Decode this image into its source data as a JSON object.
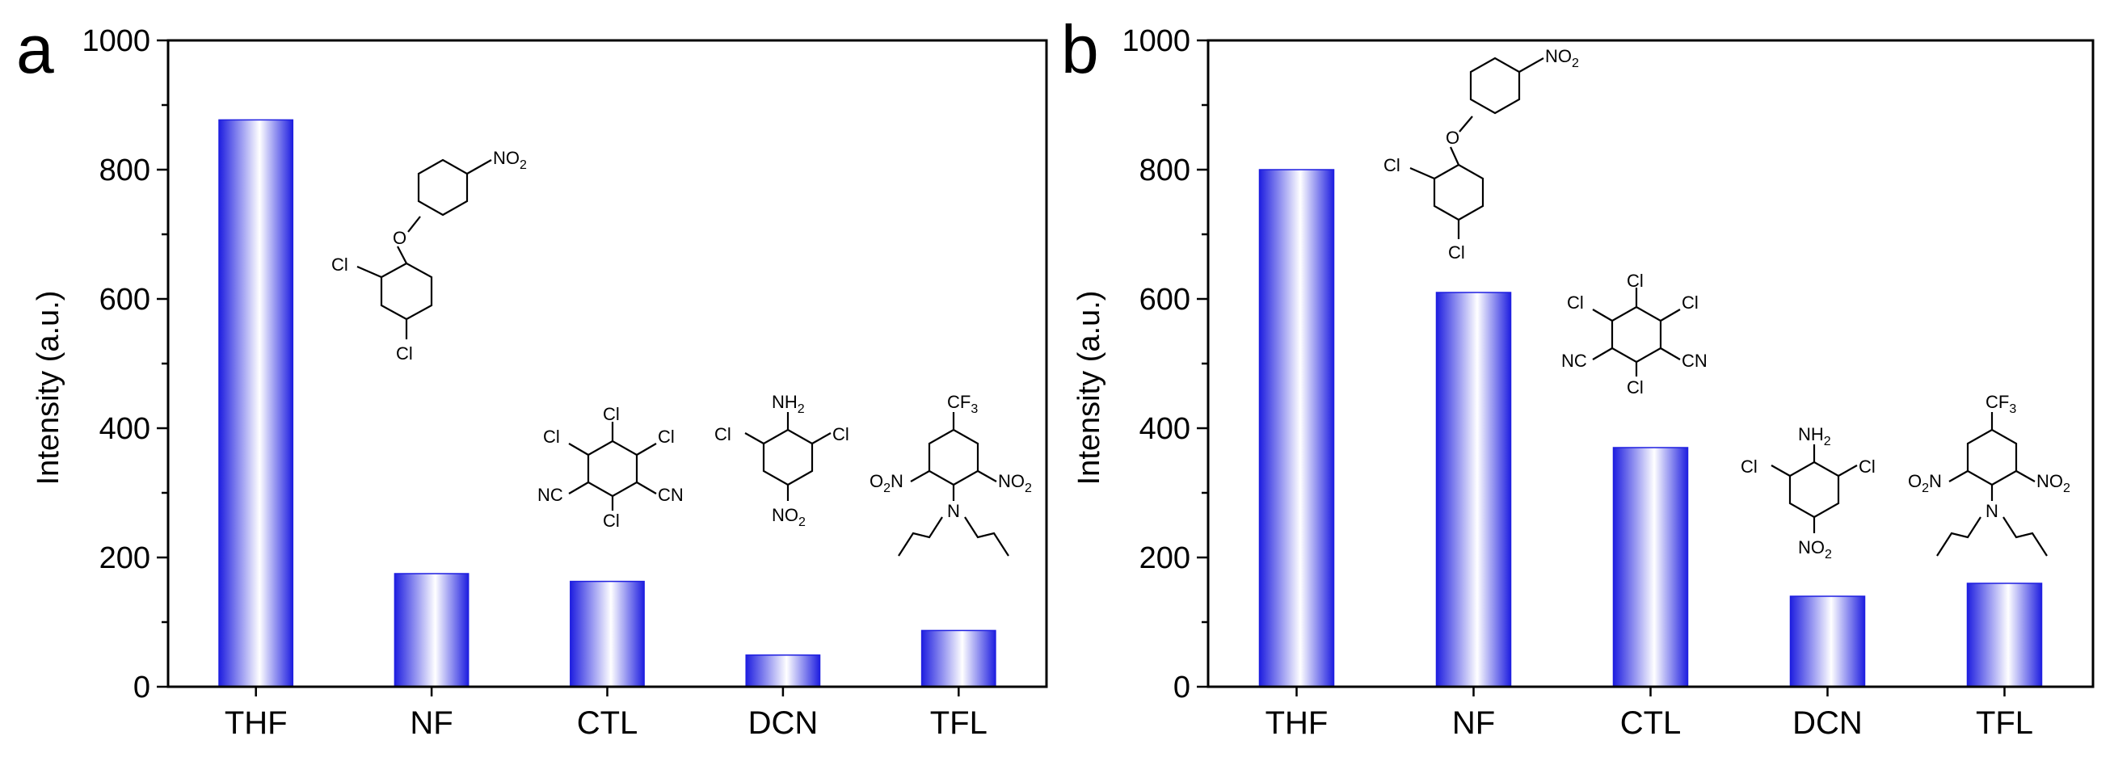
{
  "colors": {
    "bar_dark": "#1f1fe0",
    "bar_light": "#ffffff",
    "axis": "#000000"
  },
  "chart_data": [
    {
      "type": "bar",
      "panel_label": "a",
      "ylabel": "Intensity (a.u.)",
      "xlabel": "",
      "ylim": [
        0,
        1000
      ],
      "yticks": [
        "0",
        "200",
        "400",
        "600",
        "800",
        "1000"
      ],
      "categories": [
        "THF",
        "NF",
        "CTL",
        "DCN",
        "TFL"
      ],
      "values": [
        877,
        175,
        163,
        49,
        87
      ],
      "structure_labels": {
        "nf": {
          "o": "O",
          "no2": "NO2",
          "cl_a": "Cl",
          "cl_b": "Cl"
        },
        "ctl": {
          "cl1": "Cl",
          "cl2": "Cl",
          "cl3": "Cl",
          "cl4": "Cl",
          "cn1": "NC",
          "cn2": "CN"
        },
        "dcn": {
          "nh2": "NH2",
          "cl1": "Cl",
          "cl2": "Cl",
          "no2": "NO2"
        },
        "tfl": {
          "cf3": "CF3",
          "no2a": "O2N",
          "no2b": "NO2",
          "n": "N"
        }
      }
    },
    {
      "type": "bar",
      "panel_label": "b",
      "ylabel": "Intensity (a.u.)",
      "xlabel": "",
      "ylim": [
        0,
        1000
      ],
      "yticks": [
        "0",
        "200",
        "400",
        "600",
        "800",
        "1000"
      ],
      "categories": [
        "THF",
        "NF",
        "CTL",
        "DCN",
        "TFL"
      ],
      "values": [
        800,
        610,
        370,
        140,
        160
      ],
      "structure_labels": {
        "nf": {
          "o": "O",
          "no2": "NO2",
          "cl_a": "Cl",
          "cl_b": "Cl"
        },
        "ctl": {
          "cl1": "Cl",
          "cl2": "Cl",
          "cl3": "Cl",
          "cl4": "Cl",
          "cn1": "NC",
          "cn2": "CN"
        },
        "dcn": {
          "nh2": "NH2",
          "cl1": "Cl",
          "cl2": "Cl",
          "no2": "NO2"
        },
        "tfl": {
          "cf3": "CF3",
          "no2a": "O2N",
          "no2b": "NO2",
          "n": "N"
        }
      }
    }
  ]
}
